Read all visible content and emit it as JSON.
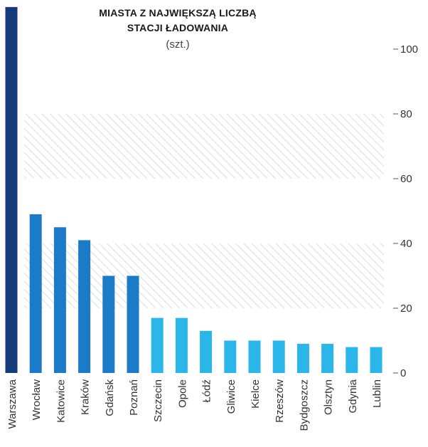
{
  "chart_data": {
    "type": "bar",
    "title_lines": [
      "MIASTA Z NAJWIĘKSZĄ LICZBĄ",
      "STACJI ŁADOWANIA"
    ],
    "unit": "(szt.)",
    "categories": [
      "Warszawa",
      "Wrocław",
      "Katowice",
      "Kraków",
      "Gdańsk",
      "Poznań",
      "Szczecin",
      "Opole",
      "Łódź",
      "Gliwice",
      "Kielce",
      "Rzeszów",
      "Bydgoszcz",
      "Olsztyn",
      "Gdynia",
      "Lublin"
    ],
    "values": [
      113,
      49,
      45,
      41,
      30,
      30,
      17,
      17,
      13,
      10,
      10,
      10,
      9,
      9,
      8,
      8
    ],
    "bar_colors": [
      "#143a7b",
      "#1c7bc9",
      "#1c7bc9",
      "#1c7bc9",
      "#1c7bc9",
      "#1c7bc9",
      "#2bb6ea",
      "#2bb6ea",
      "#2bb6ea",
      "#2bb6ea",
      "#2bb6ea",
      "#2bb6ea",
      "#2bb6ea",
      "#2bb6ea",
      "#2bb6ea",
      "#2bb6ea"
    ],
    "y_ticks": [
      0,
      20,
      40,
      60,
      80,
      100
    ],
    "ylim": [
      0,
      113
    ],
    "hatched_bands": [
      [
        20,
        40
      ],
      [
        60,
        80
      ]
    ],
    "grid": false
  }
}
